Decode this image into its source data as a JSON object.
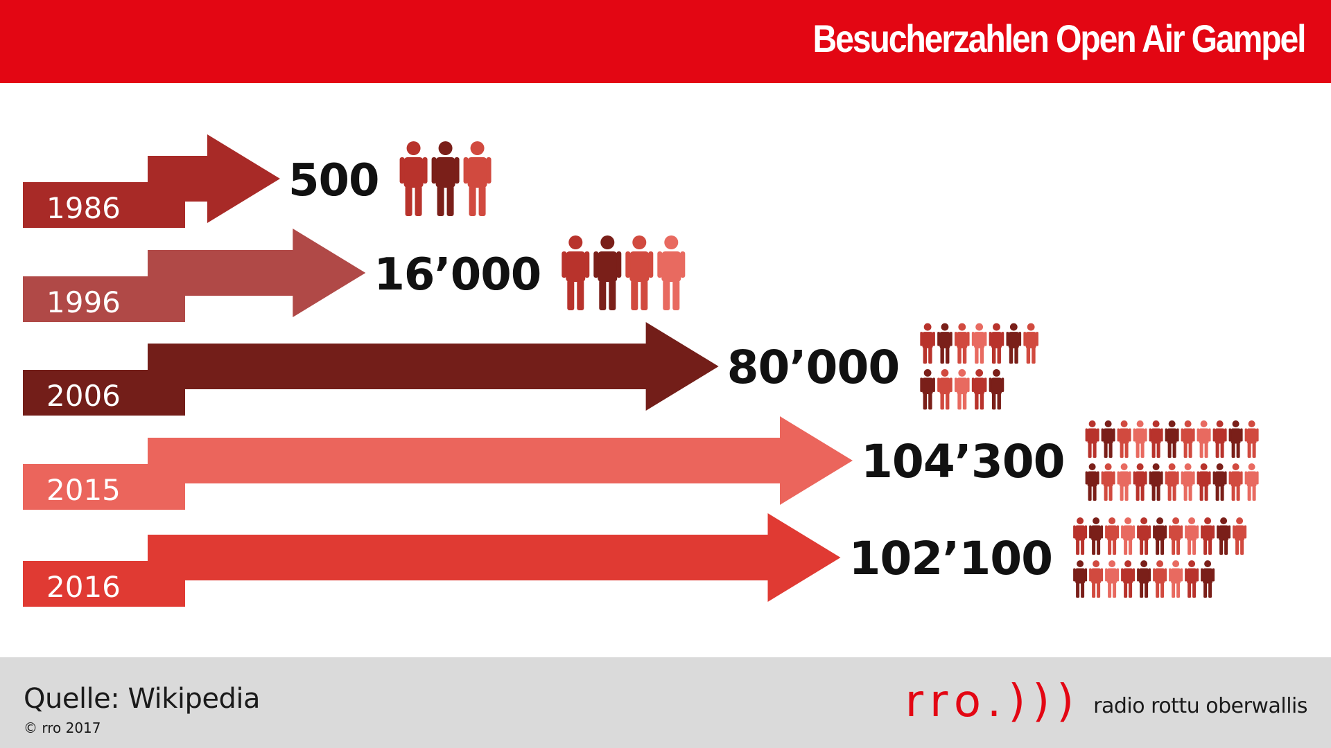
{
  "header": {
    "title": "Besucherzahlen Open Air Gampel"
  },
  "chart_data": {
    "type": "bar",
    "title": "Besucherzahlen Open Air Gampel",
    "categories": [
      "1986",
      "1996",
      "2006",
      "2015",
      "2016"
    ],
    "values": [
      500,
      16000,
      80000,
      104300,
      102100
    ],
    "value_labels": [
      "500",
      "16’000",
      "80’000",
      "104’300",
      "102’100"
    ],
    "bar_colors": [
      "#a82a27",
      "#b04947",
      "#731e19",
      "#eb655c",
      "#e03a33"
    ],
    "flap_colors": [
      "#6e1c18",
      "#6e1c18",
      "#b14947",
      "#c23b36",
      "#6e1c18"
    ],
    "person_colors": [
      "#b8332c",
      "#7a1f19",
      "#d14a3f",
      "#e86a60"
    ],
    "grid": false,
    "legend": "none"
  },
  "footer": {
    "source": "Quelle: Wikipedia",
    "copyright": "© rro 2017",
    "logo_mark": "rro.)))",
    "logo_text": "radio rottu oberwallis"
  }
}
